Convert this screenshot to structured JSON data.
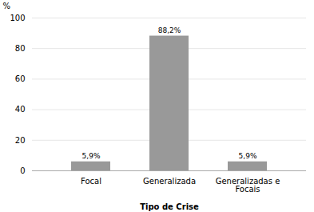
{
  "chart_data": {
    "type": "bar",
    "categories": [
      "Focal",
      "Generalizada",
      "Generalizadas e\nFocais"
    ],
    "values": [
      5.9,
      88.2,
      5.9
    ],
    "value_labels": [
      "5,9%",
      "88,2%",
      "5,9%"
    ],
    "data_labels": true,
    "color": "#999999",
    "xlabel": "Tipo de Crise",
    "ylabel": "%",
    "ylim": [
      0,
      100
    ],
    "yticks": [
      0,
      20,
      40,
      60,
      80,
      100
    ],
    "grid": true
  }
}
